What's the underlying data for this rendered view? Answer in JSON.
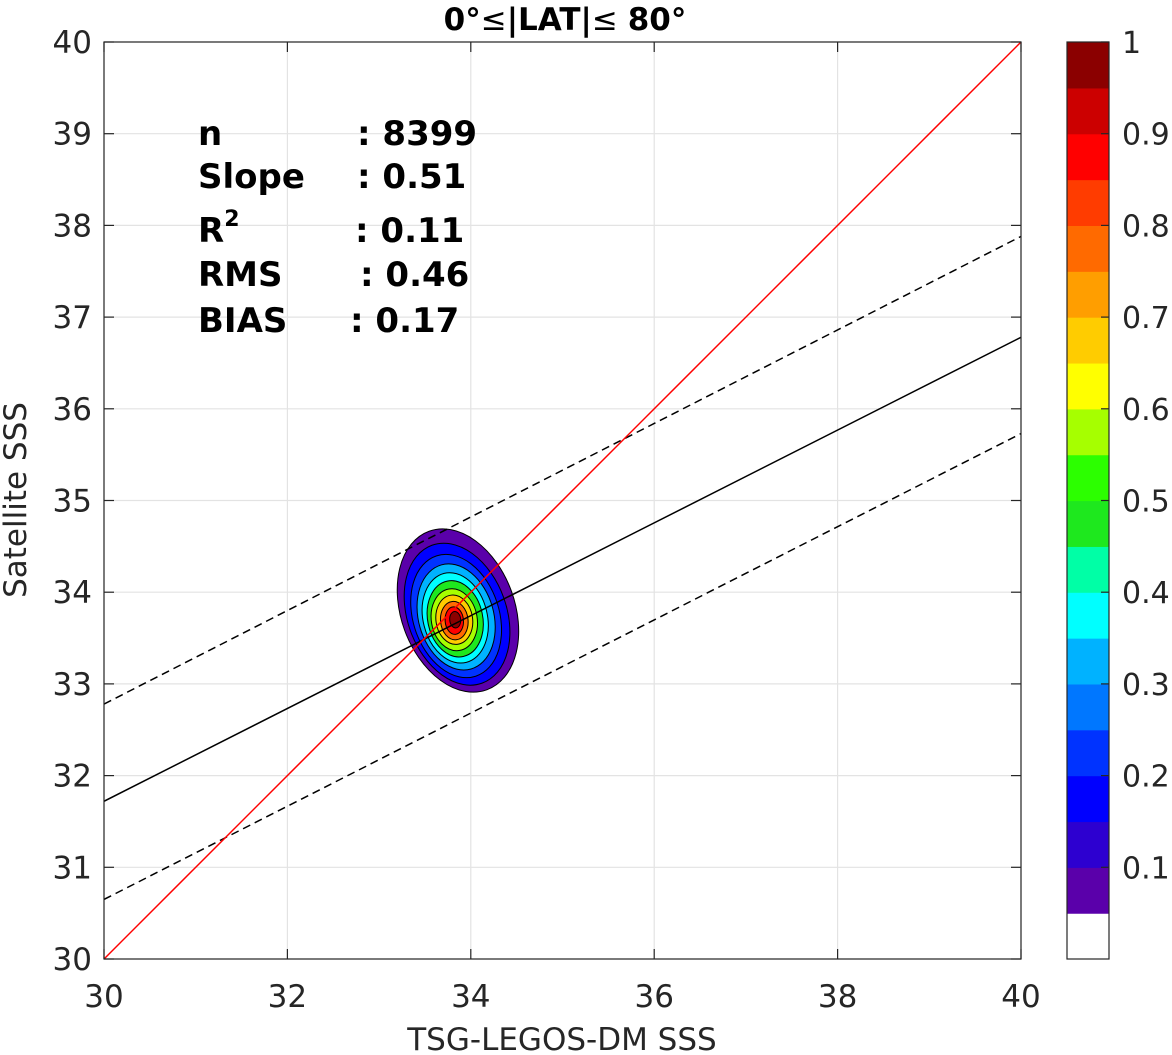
{
  "chart_data": {
    "type": "contour",
    "title_prefix": "0°",
    "title_abs": "|LAT|",
    "title_suffix": "80°",
    "xlabel": "TSG-LEGOS-DM SSS",
    "ylabel": "Satellite SSS",
    "xlim": [
      30,
      40
    ],
    "ylim": [
      30,
      40
    ],
    "xticks": [
      30,
      32,
      34,
      36,
      38,
      40
    ],
    "yticks": [
      30,
      31,
      32,
      33,
      34,
      35,
      36,
      37,
      38,
      39,
      40
    ],
    "grid": true,
    "stats": [
      {
        "label": "n",
        "value": ": 8399"
      },
      {
        "label": "Slope",
        "value": ": 0.51"
      },
      {
        "label": "R",
        "sup": "2",
        "value": ": 0.11"
      },
      {
        "label": "RMS",
        "value": ": 0.46"
      },
      {
        "label": "BIAS",
        "value": ": 0.17"
      }
    ],
    "lines": {
      "one_to_one": {
        "points": [
          [
            30,
            30
          ],
          [
            40,
            40
          ]
        ],
        "color": "#ff0000"
      },
      "regression": {
        "points": [
          [
            30,
            31.72
          ],
          [
            40,
            36.78
          ]
        ],
        "color": "#000000",
        "style": "solid"
      },
      "upper_bound": {
        "points": [
          [
            30,
            32.78
          ],
          [
            40,
            37.88
          ]
        ],
        "color": "#000000",
        "style": "dashed"
      },
      "lower_bound": {
        "points": [
          [
            30,
            30.65
          ],
          [
            40,
            35.73
          ]
        ],
        "color": "#000000",
        "style": "dashed"
      }
    },
    "density_contours": [
      {
        "level": 0.05,
        "center": [
          33.86,
          33.8
        ],
        "rx": 0.62,
        "ry": 0.92,
        "rot": -20
      },
      {
        "level": 0.15,
        "center": [
          33.85,
          33.76
        ],
        "rx": 0.54,
        "ry": 0.8,
        "rot": -20
      },
      {
        "level": 0.2,
        "center": [
          33.84,
          33.74
        ],
        "rx": 0.47,
        "ry": 0.69,
        "rot": -18
      },
      {
        "level": 0.3,
        "center": [
          33.84,
          33.73
        ],
        "rx": 0.41,
        "ry": 0.59,
        "rot": -16
      },
      {
        "level": 0.35,
        "center": [
          33.83,
          33.72
        ],
        "rx": 0.35,
        "ry": 0.5,
        "rot": -14
      },
      {
        "level": 0.45,
        "center": [
          33.83,
          33.71
        ],
        "rx": 0.3,
        "ry": 0.42,
        "rot": -12
      },
      {
        "level": 0.55,
        "center": [
          33.82,
          33.7
        ],
        "rx": 0.25,
        "ry": 0.34,
        "rot": -10
      },
      {
        "level": 0.65,
        "center": [
          33.82,
          33.7
        ],
        "rx": 0.2,
        "ry": 0.27,
        "rot": -8
      },
      {
        "level": 0.75,
        "center": [
          33.82,
          33.69
        ],
        "rx": 0.15,
        "ry": 0.21,
        "rot": -6
      },
      {
        "level": 0.85,
        "center": [
          33.82,
          33.69
        ],
        "rx": 0.1,
        "ry": 0.15,
        "rot": -5
      },
      {
        "level": 0.95,
        "center": [
          33.83,
          33.7
        ],
        "rx": 0.06,
        "ry": 0.09,
        "rot": -5
      }
    ],
    "colorbar": {
      "range": [
        0,
        1
      ],
      "tick_values": [
        0.1,
        0.2,
        0.3,
        0.4,
        0.5,
        0.6,
        0.7,
        0.8,
        0.9,
        1
      ],
      "tick_labels": [
        "0.1",
        "0.2",
        "0.3",
        "0.4",
        "0.5",
        "0.6",
        "0.7",
        "0.8",
        "0.9",
        "1"
      ],
      "colors": [
        "#ffffff",
        "#5a00aa",
        "#2d00d0",
        "#0000ff",
        "#0033ff",
        "#0077ff",
        "#00b2ff",
        "#00ffff",
        "#00ffa6",
        "#1ee81e",
        "#2cff00",
        "#a6ff00",
        "#ffff00",
        "#ffcc00",
        "#ff9e00",
        "#ff6a00",
        "#ff3c00",
        "#ff0000",
        "#cc0000",
        "#8b0000"
      ]
    }
  }
}
